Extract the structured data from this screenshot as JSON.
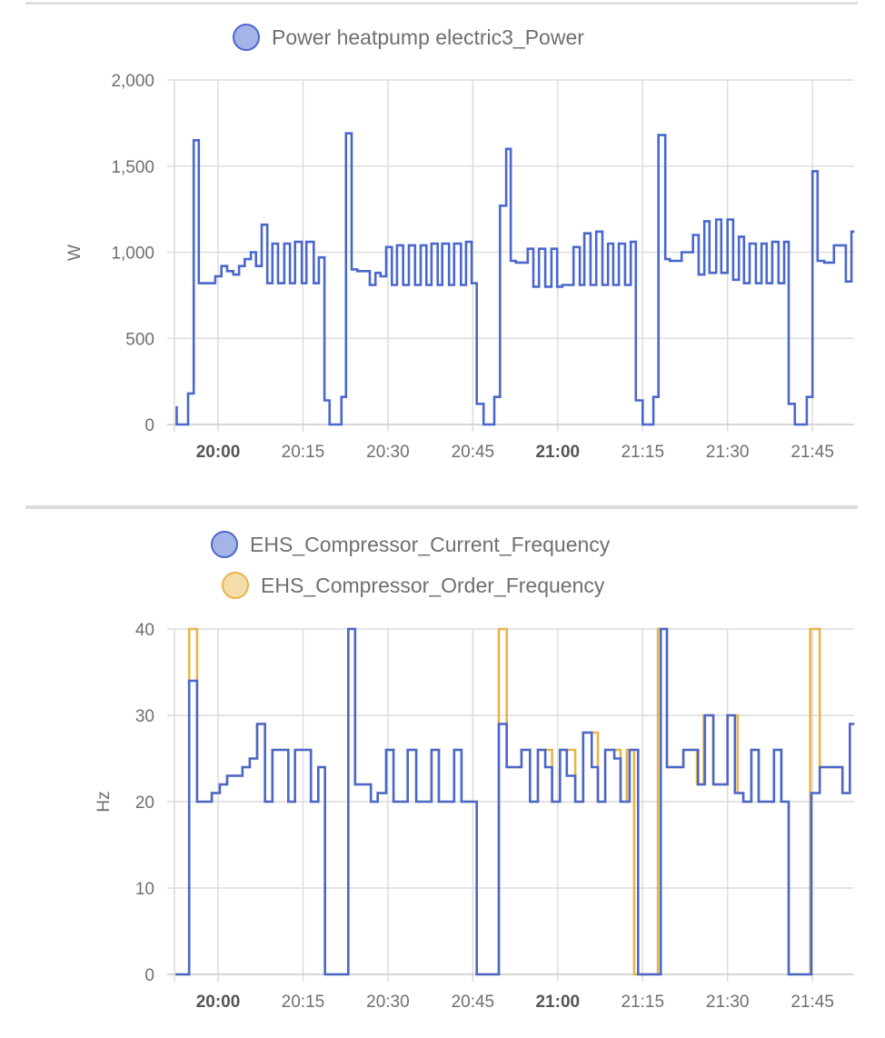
{
  "chart_data": [
    {
      "type": "line",
      "step": true,
      "title": "",
      "x_unit": "minutes after 20:00",
      "xlim": [
        -7.7,
        112.4
      ],
      "x_ticks": [
        {
          "m": 0,
          "label": "20:00",
          "bold": true
        },
        {
          "m": 15,
          "label": "20:15"
        },
        {
          "m": 30,
          "label": "20:30"
        },
        {
          "m": 45,
          "label": "20:45"
        },
        {
          "m": 60,
          "label": "21:00",
          "bold": true
        },
        {
          "m": 75,
          "label": "21:15"
        },
        {
          "m": 90,
          "label": "21:30"
        },
        {
          "m": 105,
          "label": "21:45"
        }
      ],
      "ylabel": "W",
      "ylim": [
        0,
        2000
      ],
      "y_ticks": [
        {
          "v": 0,
          "label": "0"
        },
        {
          "v": 500,
          "label": "500"
        },
        {
          "v": 1000,
          "label": "1,000"
        },
        {
          "v": 1500,
          "label": "1,500"
        },
        {
          "v": 2000,
          "label": "2,000"
        }
      ],
      "grid": true,
      "legend_position": "top-center",
      "series": [
        {
          "name": "Power heatpump electric3_Power",
          "color": "#4a67cb",
          "fill": "#a4b3e8",
          "points": [
            [
              -7.5,
              100
            ],
            [
              -7.3,
              0
            ],
            [
              -5.3,
              180
            ],
            [
              -4.3,
              1650
            ],
            [
              -3.4,
              820
            ],
            [
              -0.5,
              860
            ],
            [
              0.6,
              920
            ],
            [
              1.6,
              890
            ],
            [
              2.7,
              870
            ],
            [
              3.7,
              920
            ],
            [
              4.7,
              960
            ],
            [
              5.8,
              1000
            ],
            [
              6.7,
              920
            ],
            [
              7.7,
              1160
            ],
            [
              8.7,
              820
            ],
            [
              9.6,
              1050
            ],
            [
              10.6,
              820
            ],
            [
              11.7,
              1050
            ],
            [
              12.7,
              820
            ],
            [
              13.6,
              1060
            ],
            [
              14.8,
              820
            ],
            [
              15.6,
              1060
            ],
            [
              16.9,
              820
            ],
            [
              17.8,
              970
            ],
            [
              18.8,
              140
            ],
            [
              19.7,
              0
            ],
            [
              21.8,
              160
            ],
            [
              22.6,
              1690
            ],
            [
              23.6,
              900
            ],
            [
              24.6,
              890
            ],
            [
              26.8,
              810
            ],
            [
              27.8,
              880
            ],
            [
              28.7,
              860
            ],
            [
              29.7,
              1030
            ],
            [
              30.7,
              810
            ],
            [
              31.6,
              1040
            ],
            [
              32.7,
              810
            ],
            [
              33.7,
              1040
            ],
            [
              34.8,
              810
            ],
            [
              35.8,
              1040
            ],
            [
              36.8,
              810
            ],
            [
              37.7,
              1050
            ],
            [
              38.8,
              810
            ],
            [
              39.6,
              1050
            ],
            [
              40.8,
              810
            ],
            [
              41.7,
              1050
            ],
            [
              42.9,
              810
            ],
            [
              43.8,
              1060
            ],
            [
              44.8,
              820
            ],
            [
              45.7,
              120
            ],
            [
              46.9,
              0
            ],
            [
              48.8,
              160
            ],
            [
              49.8,
              1270
            ],
            [
              50.9,
              1600
            ],
            [
              51.7,
              950
            ],
            [
              52.6,
              940
            ],
            [
              54.7,
              1020
            ],
            [
              55.7,
              800
            ],
            [
              56.7,
              1020
            ],
            [
              57.8,
              800
            ],
            [
              58.9,
              1020
            ],
            [
              59.9,
              800
            ],
            [
              60.8,
              810
            ],
            [
              62.8,
              1030
            ],
            [
              63.9,
              810
            ],
            [
              64.7,
              1110
            ],
            [
              65.8,
              810
            ],
            [
              66.8,
              1120
            ],
            [
              67.9,
              810
            ],
            [
              68.9,
              1050
            ],
            [
              69.8,
              810
            ],
            [
              70.8,
              1050
            ],
            [
              71.9,
              810
            ],
            [
              72.9,
              1060
            ],
            [
              73.8,
              140
            ],
            [
              75.0,
              0
            ],
            [
              76.9,
              160
            ],
            [
              77.8,
              1680
            ],
            [
              79.0,
              960
            ],
            [
              79.8,
              950
            ],
            [
              81.9,
              1000
            ],
            [
              83.9,
              1100
            ],
            [
              84.9,
              870
            ],
            [
              85.9,
              1180
            ],
            [
              86.8,
              880
            ],
            [
              88.0,
              1190
            ],
            [
              88.9,
              880
            ],
            [
              90.0,
              1190
            ],
            [
              91.0,
              840
            ],
            [
              92.0,
              1090
            ],
            [
              92.9,
              820
            ],
            [
              93.9,
              1050
            ],
            [
              95.0,
              820
            ],
            [
              96.0,
              1050
            ],
            [
              96.9,
              820
            ],
            [
              97.9,
              1060
            ],
            [
              99.0,
              820
            ],
            [
              100.0,
              1060
            ],
            [
              100.8,
              120
            ],
            [
              101.9,
              0
            ],
            [
              104.0,
              160
            ],
            [
              105.0,
              1470
            ],
            [
              105.9,
              950
            ],
            [
              107.1,
              940
            ],
            [
              108.8,
              1040
            ],
            [
              110.9,
              830
            ],
            [
              111.9,
              1120
            ],
            [
              112.4,
              1120
            ]
          ]
        }
      ]
    },
    {
      "type": "line",
      "step": true,
      "title": "",
      "x_unit": "minutes after 20:00",
      "xlim": [
        -7.7,
        112.4
      ],
      "x_ticks": [
        {
          "m": 0,
          "label": "20:00",
          "bold": true
        },
        {
          "m": 15,
          "label": "20:15"
        },
        {
          "m": 30,
          "label": "20:30"
        },
        {
          "m": 45,
          "label": "20:45"
        },
        {
          "m": 60,
          "label": "21:00",
          "bold": true
        },
        {
          "m": 75,
          "label": "21:15"
        },
        {
          "m": 90,
          "label": "21:30"
        },
        {
          "m": 105,
          "label": "21:45"
        }
      ],
      "ylabel": "Hz",
      "ylim": [
        0,
        40
      ],
      "y_ticks": [
        {
          "v": 0,
          "label": "0"
        },
        {
          "v": 10,
          "label": "10"
        },
        {
          "v": 20,
          "label": "20"
        },
        {
          "v": 30,
          "label": "30"
        },
        {
          "v": 40,
          "label": "40"
        }
      ],
      "grid": true,
      "legend_position": "top-center",
      "series": [
        {
          "name": "EHS_Compressor_Order_Frequency",
          "color": "#e8b54c",
          "fill": "#f5dcab",
          "points": [
            [
              -7.5,
              0
            ],
            [
              -5.1,
              40
            ],
            [
              -3.7,
              20
            ],
            [
              -1.1,
              21
            ],
            [
              0.3,
              22
            ],
            [
              1.6,
              23
            ],
            [
              4.3,
              24
            ],
            [
              5.6,
              25
            ],
            [
              6.9,
              29
            ],
            [
              8.3,
              20
            ],
            [
              9.6,
              26
            ],
            [
              12.4,
              20
            ],
            [
              13.6,
              26
            ],
            [
              16.4,
              20
            ],
            [
              17.7,
              24
            ],
            [
              18.9,
              0
            ],
            [
              23,
              40
            ],
            [
              24.2,
              22
            ],
            [
              27,
              20
            ],
            [
              28.2,
              21
            ],
            [
              29.7,
              26
            ],
            [
              31,
              20
            ],
            [
              33.5,
              26
            ],
            [
              35,
              20
            ],
            [
              37.7,
              26
            ],
            [
              39,
              20
            ],
            [
              41.7,
              26
            ],
            [
              43,
              20
            ],
            [
              45.7,
              0
            ],
            [
              49.6,
              40
            ],
            [
              51,
              24
            ],
            [
              53.6,
              26
            ],
            [
              55.1,
              20
            ],
            [
              56.5,
              26
            ],
            [
              59,
              20
            ],
            [
              60.4,
              26
            ],
            [
              63.1,
              20
            ],
            [
              64.5,
              28
            ],
            [
              67.1,
              20
            ],
            [
              68.4,
              26
            ],
            [
              71.1,
              20
            ],
            [
              72.2,
              26
            ],
            [
              73.5,
              0
            ],
            [
              77.7,
              40
            ],
            [
              79.3,
              24
            ],
            [
              82.2,
              26
            ],
            [
              84.6,
              22
            ],
            [
              85.8,
              30
            ],
            [
              87.5,
              22
            ],
            [
              90,
              30
            ],
            [
              91.8,
              21
            ],
            [
              92.8,
              20
            ],
            [
              94.2,
              26
            ],
            [
              95.5,
              20
            ],
            [
              98.2,
              26
            ],
            [
              99.5,
              20
            ],
            [
              100.8,
              0
            ],
            [
              104.6,
              40
            ],
            [
              106.3,
              24
            ],
            [
              110.3,
              21
            ],
            [
              111.6,
              29
            ],
            [
              112.4,
              29
            ]
          ]
        },
        {
          "name": "EHS_Compressor_Current_Frequency",
          "color": "#4a67cb",
          "fill": "#a4b3e8",
          "points": [
            [
              -7.5,
              0
            ],
            [
              -5.1,
              34
            ],
            [
              -3.7,
              20
            ],
            [
              -1.1,
              21
            ],
            [
              0.3,
              22
            ],
            [
              1.6,
              23
            ],
            [
              4.3,
              24
            ],
            [
              5.6,
              25
            ],
            [
              6.9,
              29
            ],
            [
              8.3,
              20
            ],
            [
              9.6,
              26
            ],
            [
              12.4,
              20
            ],
            [
              13.6,
              26
            ],
            [
              16.4,
              20
            ],
            [
              17.7,
              24
            ],
            [
              18.9,
              0
            ],
            [
              23,
              40
            ],
            [
              24.2,
              22
            ],
            [
              27,
              20
            ],
            [
              28.2,
              21
            ],
            [
              29.7,
              26
            ],
            [
              31,
              20
            ],
            [
              33.5,
              26
            ],
            [
              35,
              20
            ],
            [
              37.7,
              26
            ],
            [
              39,
              20
            ],
            [
              41.7,
              26
            ],
            [
              43,
              20
            ],
            [
              45.7,
              0
            ],
            [
              49.6,
              29
            ],
            [
              51,
              24
            ],
            [
              53.6,
              26
            ],
            [
              55.1,
              20
            ],
            [
              56.5,
              26
            ],
            [
              57.8,
              24
            ],
            [
              59,
              20
            ],
            [
              60.4,
              26
            ],
            [
              61.6,
              23
            ],
            [
              63.1,
              20
            ],
            [
              64.5,
              28
            ],
            [
              66,
              24
            ],
            [
              67.1,
              20
            ],
            [
              68.4,
              26
            ],
            [
              70,
              25
            ],
            [
              71.1,
              20
            ],
            [
              72.7,
              26
            ],
            [
              74.2,
              0
            ],
            [
              78.2,
              40
            ],
            [
              79.3,
              24
            ],
            [
              82.2,
              26
            ],
            [
              84.8,
              22
            ],
            [
              86,
              30
            ],
            [
              87.5,
              22
            ],
            [
              90,
              30
            ],
            [
              91.3,
              21
            ],
            [
              92.8,
              20
            ],
            [
              94.2,
              26
            ],
            [
              95.5,
              20
            ],
            [
              98.2,
              26
            ],
            [
              99.5,
              20
            ],
            [
              100.8,
              0
            ],
            [
              104.8,
              21
            ],
            [
              106.3,
              24
            ],
            [
              110.3,
              21
            ],
            [
              111.6,
              29
            ],
            [
              112.4,
              29
            ]
          ]
        }
      ],
      "legend_order": [
        "EHS_Compressor_Current_Frequency",
        "EHS_Compressor_Order_Frequency"
      ]
    }
  ]
}
